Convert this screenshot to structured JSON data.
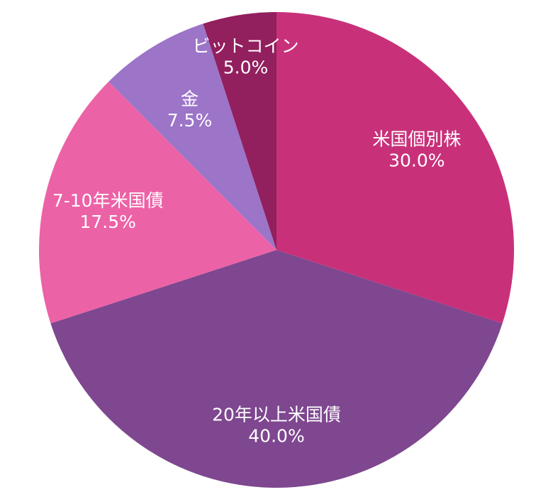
{
  "chart_data": {
    "type": "pie",
    "start": "top",
    "direction": "clockwise",
    "slices": [
      {
        "label": "米国個別株",
        "value": 30.0,
        "display": "30.0%",
        "color": "#c8317a"
      },
      {
        "label": "20年以上米国債",
        "value": 40.0,
        "display": "40.0%",
        "color": "#7e478f"
      },
      {
        "label": "7-10年米国債",
        "value": 17.5,
        "display": "17.5%",
        "color": "#ec62a6"
      },
      {
        "label": "金",
        "value": 7.5,
        "display": "7.5%",
        "color": "#9c74c8"
      },
      {
        "label": "ビットコイン",
        "value": 5.0,
        "display": "5.0%",
        "color": "#921f5e"
      }
    ]
  }
}
